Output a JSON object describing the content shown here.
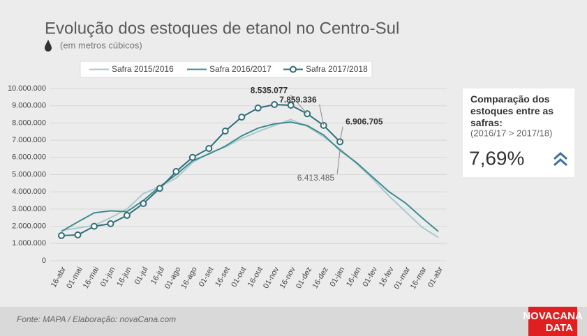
{
  "chart_data": {
    "type": "line",
    "title": "Evolução dos estoques de etanol no Centro-Sul",
    "subtitle": "(em metros cúbicos)",
    "categories": [
      "16-abr",
      "01-mai",
      "16-mai",
      "01-jun",
      "16-jun",
      "01-jul",
      "16-jul",
      "01-ago",
      "16-ago",
      "01-set",
      "16-set",
      "01-out",
      "16-out",
      "01-nov",
      "16-nov",
      "01-dez",
      "16-dez",
      "01-jan",
      "16-jan",
      "01-fev",
      "16-fev",
      "01-mar",
      "16-mar",
      "01-abr"
    ],
    "series": [
      {
        "name": "Safra 2015/2016",
        "color": "#a9c9cc",
        "values": [
          1750000,
          1900000,
          2050000,
          2500000,
          3000000,
          3900000,
          4300000,
          4800000,
          5700000,
          6250000,
          6600000,
          7100000,
          7500000,
          7850000,
          8200000,
          7800000,
          7200000,
          6500000,
          5650000,
          4750000,
          3750000,
          2850000,
          1950000,
          1350000
        ]
      },
      {
        "name": "Safra 2016/2017",
        "color": "#3f8c92",
        "values": [
          1700000,
          2250000,
          2780000,
          2900000,
          2850000,
          3500000,
          4300000,
          5000000,
          5800000,
          6200000,
          6650000,
          7250000,
          7700000,
          7950000,
          8050000,
          7850000,
          7300000,
          6413485,
          5700000,
          4850000,
          4000000,
          3350000,
          2500000,
          1700000
        ],
        "value_labels": [
          null,
          null,
          null,
          null,
          null,
          null,
          null,
          null,
          null,
          null,
          null,
          null,
          null,
          null,
          null,
          null,
          null,
          "6.413.485",
          null,
          null,
          null,
          null,
          null,
          null
        ]
      },
      {
        "name": "Safra 2017/2018",
        "color": "#2f6f79",
        "values": [
          1460000,
          1500000,
          2000000,
          2150000,
          2630000,
          3320000,
          4200000,
          5180000,
          6000000,
          6520000,
          7530000,
          8340000,
          8870000,
          9070000,
          9030000,
          8535077,
          7859336,
          6906705,
          null,
          null,
          null,
          null,
          null,
          null
        ],
        "value_labels": [
          null,
          null,
          null,
          null,
          null,
          null,
          null,
          null,
          null,
          null,
          null,
          null,
          null,
          null,
          null,
          "8.535.077",
          "7.859.336",
          "6.906.705",
          null,
          null,
          null,
          null,
          null,
          null
        ]
      }
    ],
    "ylim": [
      0,
      10000000
    ],
    "yticks": [
      0,
      {
        "value": 1000000,
        "label": "1.000.000"
      },
      {
        "value": 2000000,
        "label": "2.000.000"
      },
      {
        "value": 3000000,
        "label": "3.000.000"
      },
      {
        "value": 4000000,
        "label": "4.000.000"
      },
      {
        "value": 5000000,
        "label": "5.000.000"
      },
      {
        "value": 6000000,
        "label": "6.000.000"
      },
      {
        "value": 7000000,
        "label": "7.000.000"
      },
      {
        "value": 8000000,
        "label": "8.000.000"
      },
      {
        "value": 9000000,
        "label": "9.000.000"
      },
      {
        "value": 10000000,
        "label": "10.000.000"
      }
    ],
    "grid": true
  },
  "sidebar": {
    "heading": "Comparação dos estoques entre as safras:",
    "comparison": "(2016/17 > 2017/18)",
    "value": "7,69%"
  },
  "footer": {
    "source": "Fonte: MAPA  / Elaboração: novaCana.com",
    "logo_top": "NOVACANA",
    "logo_bottom": "DATA"
  }
}
